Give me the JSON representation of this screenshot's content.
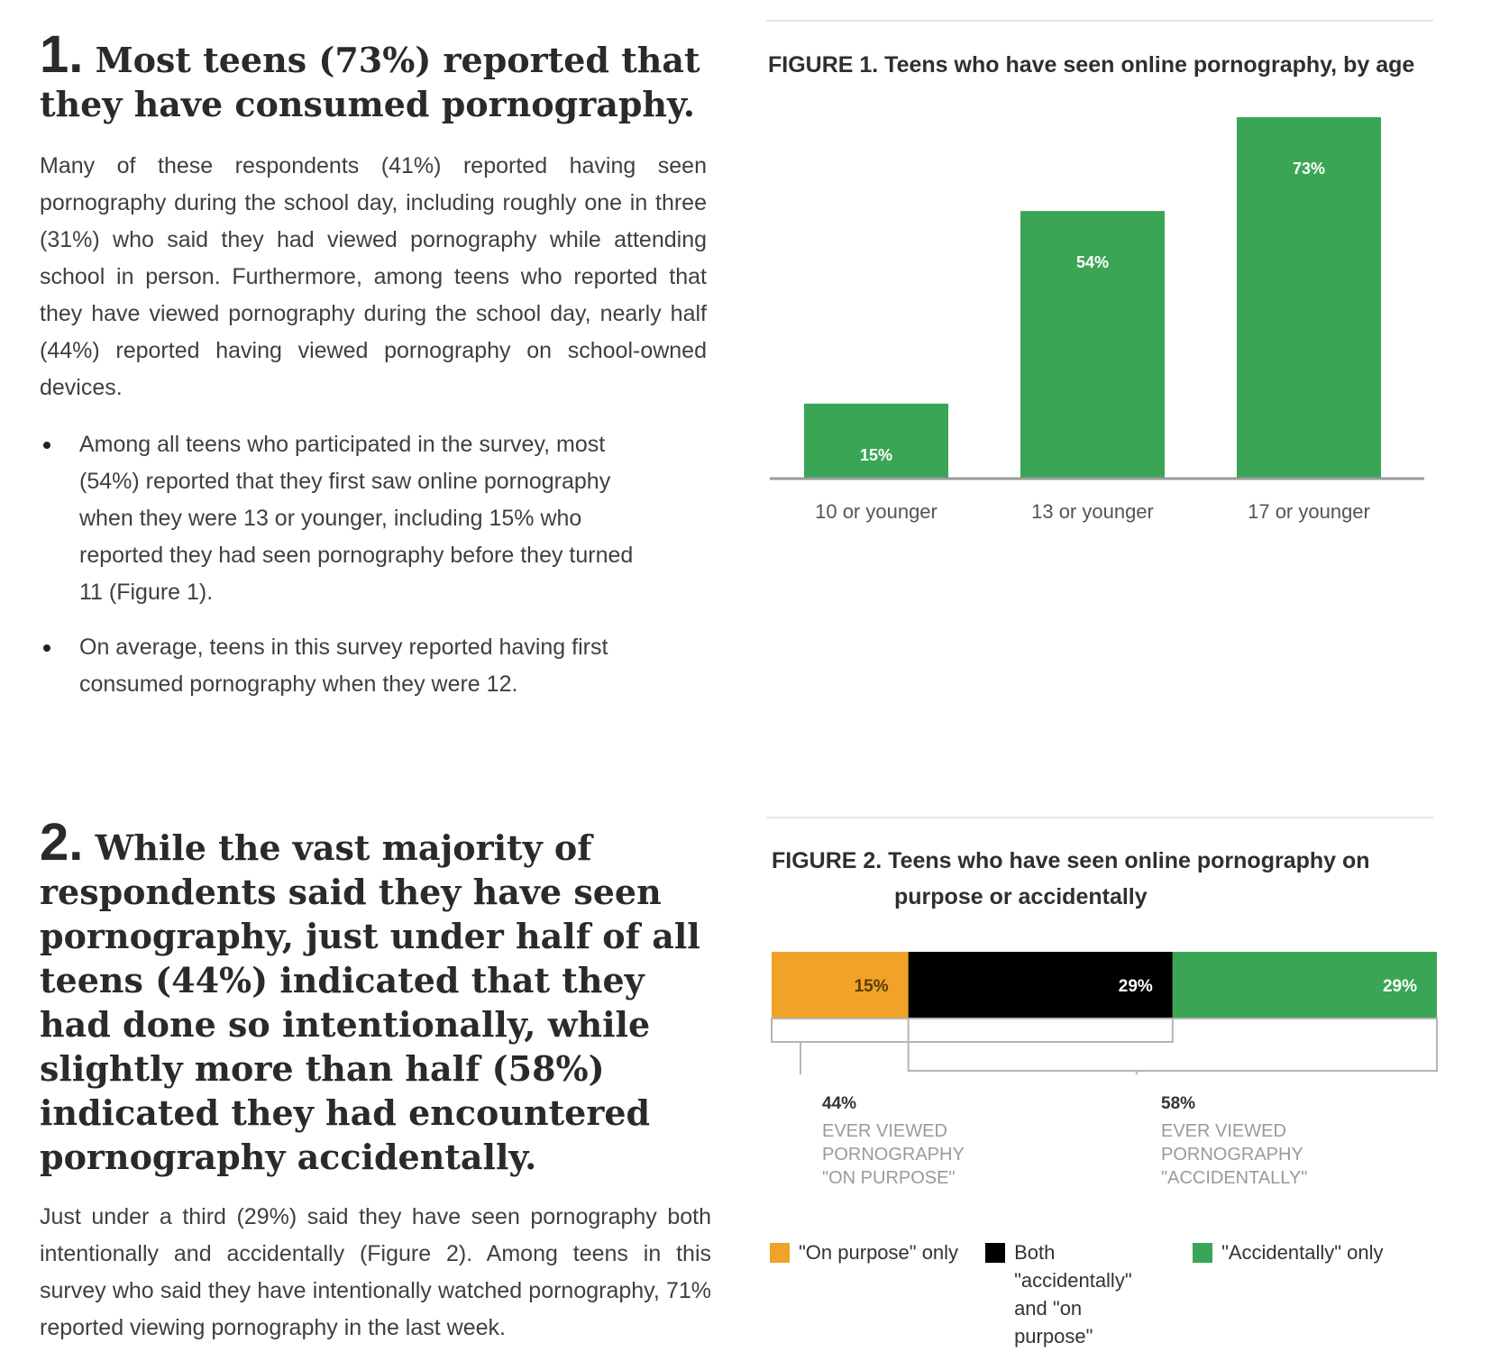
{
  "section1": {
    "number": "1.",
    "heading": "Most teens (73%) reported that they have consumed pornography.",
    "paragraph": "Many of these respondents (41%) reported having seen pornography during the school day, including roughly one in three (31%) who said they had viewed pornography while attending school in person. Furthermore, among teens who reported that they have viewed pornography during the school day, nearly half (44%) reported having viewed pornography on school-owned devices.",
    "bullets": [
      "Among all teens who participated in the survey, most (54%) reported that they first saw online pornography when they were 13 or younger, including 15% who reported they had seen pornography before they turned 11 (Figure 1).",
      "On average, teens in this survey reported having first consumed pornography when they were 12."
    ]
  },
  "section2": {
    "number": "2.",
    "heading": "While the vast majority of respondents said they have seen pornography, just under half of all teens (44%) indicated that they had done so intentionally, while slightly more than half (58%) indicated they had encountered pornography accidentally.",
    "paragraph": "Just under a third (29%) said they have seen pornography both intentionally and accidentally (Figure 2). Among teens in this survey who said they have intentionally watched pornography, 71% reported viewing pornography in the last week."
  },
  "figure1": {
    "title": "FIGURE 1. Teens who have seen online pornography, by age"
  },
  "figure2": {
    "title_line1": "FIGURE 2. Teens who have seen online pornography on",
    "title_line2": "purpose or accidentally",
    "annotation_left_pct": "44%",
    "annotation_left_text": "EVER VIEWED PORNOGRAPHY \"ON PURPOSE\"",
    "annotation_right_pct": "58%",
    "annotation_right_text": "EVER VIEWED PORNOGRAPHY \"ACCIDENTALLY\"",
    "legend": [
      {
        "label": "\"On purpose\" only",
        "color": "#f0a229"
      },
      {
        "label": "Both \"accidentally\" and \"on purpose\"",
        "color": "#000000"
      },
      {
        "label": "\"Accidentally\" only",
        "color": "#3aa655"
      }
    ]
  },
  "chart_data": [
    {
      "type": "bar",
      "title": "FIGURE 1. Teens who have seen online pornography, by age",
      "categories": [
        "10 or younger",
        "13 or younger",
        "17 or younger"
      ],
      "values": [
        15,
        54,
        73
      ],
      "data_labels": [
        "15%",
        "54%",
        "73%"
      ],
      "ylim": [
        0,
        73
      ],
      "bar_color": "#3aa655",
      "grid": false
    },
    {
      "type": "bar",
      "subtype": "stacked-horizontal",
      "title": "FIGURE 2. Teens who have seen online pornography on purpose or accidentally",
      "series": [
        {
          "name": "\"On purpose\" only",
          "values": [
            15
          ],
          "label": "15%",
          "color": "#f0a229"
        },
        {
          "name": "Both \"accidentally\" and \"on purpose\"",
          "values": [
            29
          ],
          "label": "29%",
          "color": "#000000"
        },
        {
          "name": "\"Accidentally\" only",
          "values": [
            29
          ],
          "label": "29%",
          "color": "#3aa655"
        }
      ],
      "legend_position": "bottom"
    }
  ]
}
